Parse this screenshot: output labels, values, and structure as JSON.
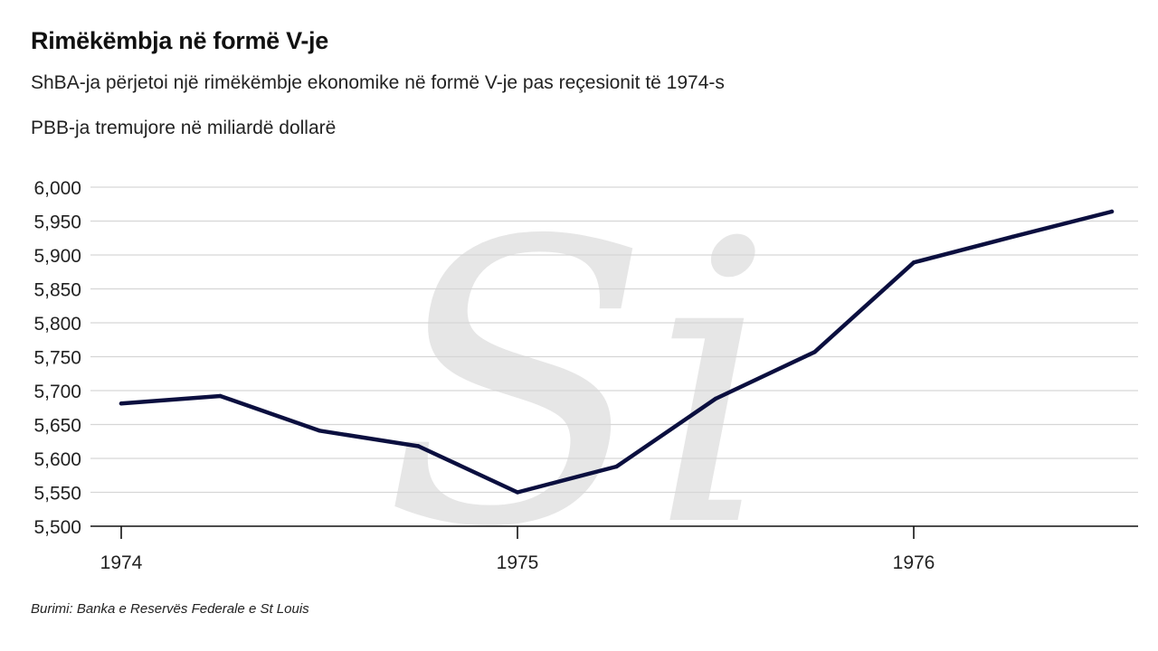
{
  "header": {
    "title": "Rimëkëmbja në formë V-je",
    "subtitle": "ShBA-ja përjetoi një rimëkëmbje ekonomike në formë V-je pas reçesionit të 1974-s",
    "unit_label": "PBB-ja tremujore në miliardë dollarë"
  },
  "footer": {
    "source": "Burimi: Banka e Reservës Federale e St Louis"
  },
  "watermark": {
    "text": "Si",
    "color": "#e6e6e6"
  },
  "colors": {
    "line": "#0b0f3f",
    "grid": "#d6d6d6",
    "axis": "#111111"
  },
  "chart_data": {
    "type": "line",
    "title": "Rimëkëmbja në formë V-je",
    "subtitle": "ShBA-ja përjetoi një rimëkëmbje ekonomike në formë V-je pas reçesionit të 1974-s",
    "ylabel": "PBB-ja tremujore në miliardë dollarë",
    "xlabel": "",
    "x": [
      1974.0,
      1974.25,
      1974.5,
      1974.75,
      1975.0,
      1975.25,
      1975.5,
      1975.75,
      1976.0,
      1976.25,
      1976.5
    ],
    "values": [
      5681,
      5692,
      5641,
      5618,
      5550,
      5588,
      5688,
      5757,
      5889,
      5927,
      5964
    ],
    "xlim": [
      1974.0,
      1976.5
    ],
    "ylim": [
      5500,
      6000
    ],
    "y_ticks": [
      5500,
      5550,
      5600,
      5650,
      5700,
      5750,
      5800,
      5850,
      5900,
      5950,
      6000
    ],
    "y_tick_labels": [
      "5,500",
      "5,550",
      "5,600",
      "5,650",
      "5,700",
      "5,750",
      "5,800",
      "5,850",
      "5,900",
      "5,950",
      "6,000"
    ],
    "x_ticks": [
      1974,
      1975,
      1976
    ],
    "x_tick_labels": [
      "1974",
      "1975",
      "1976"
    ],
    "grid": true,
    "legend": "none"
  }
}
